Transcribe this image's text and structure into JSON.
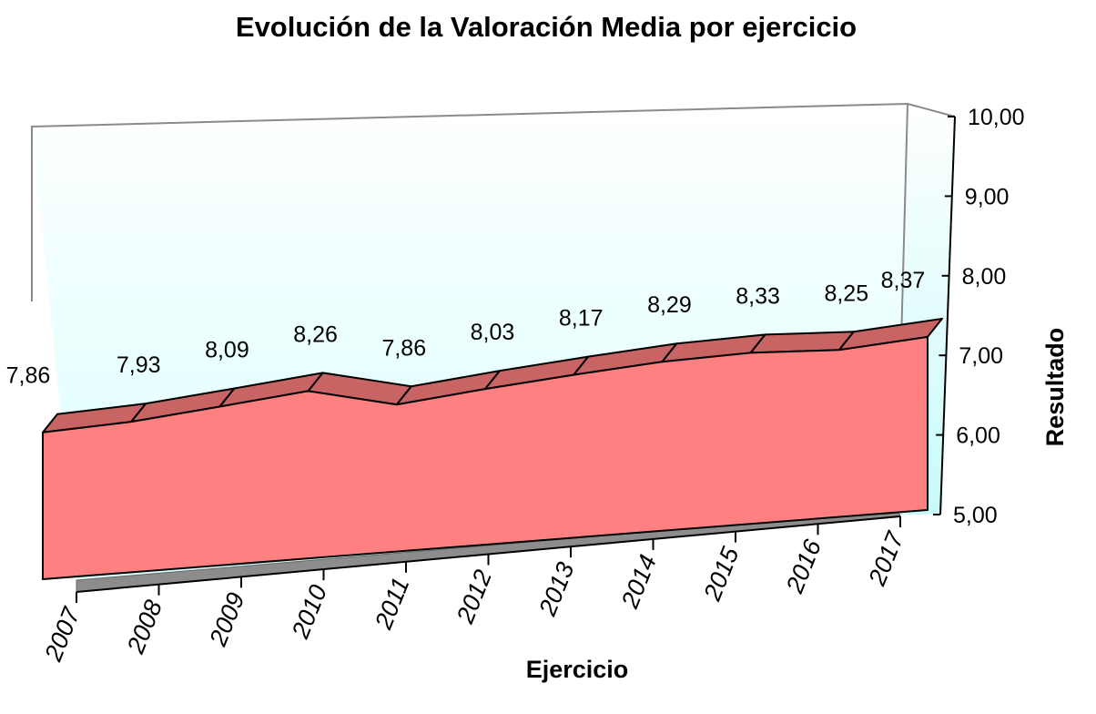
{
  "chart_data": {
    "type": "area",
    "title": "Evolución de la Valoración Media por ejercicio",
    "xlabel": "Ejercicio",
    "ylabel": "Resultado",
    "categories": [
      "2007",
      "2008",
      "2009",
      "2010",
      "2011",
      "2012",
      "2013",
      "2014",
      "2015",
      "2016",
      "2017"
    ],
    "values": [
      7.86,
      7.93,
      8.09,
      8.26,
      7.86,
      8.03,
      8.17,
      8.29,
      8.33,
      8.25,
      8.37
    ],
    "data_labels": [
      "7,86",
      "7,93",
      "8,09",
      "8,26",
      "7,86",
      "8,03",
      "8,17",
      "8,29",
      "8,33",
      "8,25",
      "8,37"
    ],
    "ylim": [
      5,
      10
    ],
    "yticks": [
      5,
      6,
      7,
      8,
      9,
      10
    ],
    "ytick_labels": [
      "5,00",
      "6,00",
      "7,00",
      "8,00",
      "9,00",
      "10,00"
    ],
    "three_d": true,
    "colors": {
      "area_front": "#ff8080",
      "area_top": "#c86464",
      "floor": "#8c8c8c",
      "wall_gradient_top": "#ffffff",
      "wall_gradient_bottom": "#d8ffff"
    }
  }
}
